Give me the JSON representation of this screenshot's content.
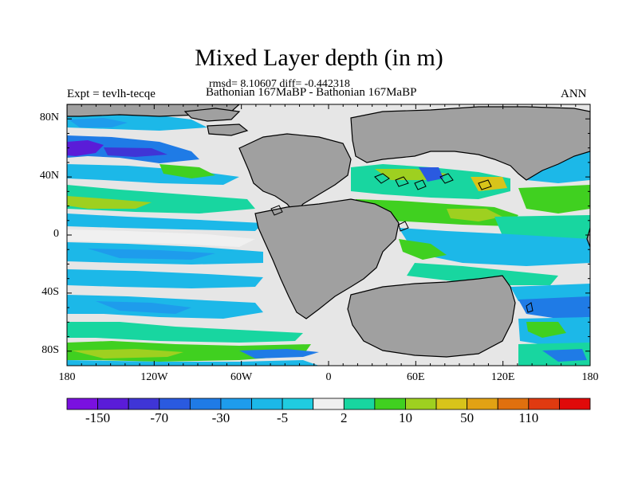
{
  "title": "Mixed Layer depth (in m)",
  "stats": "rmsd= 8.10607 diff= -0.442318",
  "subtitle": "Bathonian 167MaBP - Bathonian 167MaBP",
  "experiment": "Expt = tevlh-tecqe",
  "season": "ANN",
  "map": {
    "lat_labels": [
      "80N",
      "40N",
      "0",
      "40S",
      "80S"
    ],
    "lat_values": [
      80,
      40,
      0,
      -40,
      -80
    ],
    "lon_labels": [
      "180",
      "120W",
      "60W",
      "0",
      "60E",
      "120E",
      "180"
    ],
    "lon_values": [
      -180,
      -120,
      -60,
      0,
      60,
      120,
      180
    ],
    "ocean_background": "#e6e6e6",
    "land_color": "#a0a0a0"
  },
  "colorbar": {
    "colors": [
      "#7a10e0",
      "#5a1cd8",
      "#3f35d6",
      "#2a5ae0",
      "#1f7be6",
      "#1e9cec",
      "#1cb8e8",
      "#20cce0",
      "#f0f0f0",
      "#18d6a0",
      "#40d020",
      "#9ed020",
      "#d8c41a",
      "#e2a214",
      "#e0700e",
      "#e03a10",
      "#e00a0a"
    ],
    "tick_labels": [
      "-150",
      "-70",
      "-30",
      "-5",
      "2",
      "10",
      "50",
      "110"
    ]
  }
}
